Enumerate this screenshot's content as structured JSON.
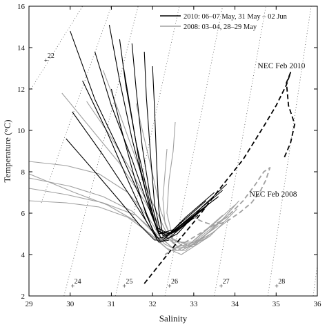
{
  "chart_data": {
    "type": "line",
    "title": "",
    "xlabel": "Salinity",
    "ylabel": "Temperature (°C)",
    "xlim": [
      29,
      36
    ],
    "ylim": [
      2,
      16
    ],
    "xticks": [
      29,
      30,
      31,
      32,
      33,
      34,
      35,
      36
    ],
    "yticks": [
      2,
      4,
      6,
      8,
      10,
      12,
      14,
      16
    ],
    "grid": false,
    "legend_position": "top-right",
    "colors": {
      "series_2010": "#000000",
      "series_2008": "#a0a0a0",
      "isopycnal": "#555555"
    },
    "legend": [
      {
        "label": "2010: 06–07 May, 31 May – 02 Jun",
        "color": "#000000"
      },
      {
        "label": "2008: 03–04, 28–29 May",
        "color": "#a0a0a0"
      }
    ],
    "isopycnal_labels": [
      {
        "text": "22",
        "salinity": 29.45,
        "temperature": 13.4
      },
      {
        "text": "24",
        "salinity": 30.1,
        "temperature": 2.5
      },
      {
        "text": "25",
        "salinity": 31.35,
        "temperature": 2.5
      },
      {
        "text": "26",
        "salinity": 32.45,
        "temperature": 2.5
      },
      {
        "text": "27",
        "salinity": 33.7,
        "temperature": 2.5
      },
      {
        "text": "28",
        "salinity": 35.05,
        "temperature": 2.5
      }
    ],
    "isopycnals": [
      {
        "sigma": 22,
        "x": [
          29.05,
          30.3
        ],
        "y": [
          12.0,
          16.0
        ]
      },
      {
        "sigma": 23,
        "x": [
          29.3,
          31.0
        ],
        "y": [
          6.5,
          16.0
        ]
      },
      {
        "sigma": 24,
        "x": [
          29.85,
          31.65
        ],
        "y": [
          2.0,
          16.0
        ]
      },
      {
        "sigma": 25,
        "x": [
          31.1,
          32.65
        ],
        "y": [
          2.0,
          16.0
        ]
      },
      {
        "sigma": 26,
        "x": [
          32.3,
          33.7
        ],
        "y": [
          2.0,
          16.0
        ]
      },
      {
        "sigma": 27,
        "x": [
          33.5,
          34.75
        ],
        "y": [
          2.0,
          16.0
        ]
      },
      {
        "sigma": 28,
        "x": [
          34.8,
          35.85
        ],
        "y": [
          2.0,
          16.0
        ]
      },
      {
        "sigma": 29,
        "x": [
          35.9,
          36.0
        ],
        "y": [
          2.0,
          3.5
        ]
      }
    ],
    "annotations": [
      {
        "text": "NEC Feb 2010",
        "salinity": 34.55,
        "temperature": 13.0
      },
      {
        "text": "NEC Feb 2008",
        "salinity": 34.35,
        "temperature": 6.8
      }
    ],
    "series": [
      {
        "name": "NEC Feb 2010",
        "style": "dashed",
        "color": "#000000",
        "x": [
          31.8,
          32.2,
          32.6,
          33.1,
          33.6,
          34.2,
          34.7,
          35.0,
          35.25,
          35.35,
          35.25,
          35.3,
          35.45,
          35.35,
          35.2
        ],
        "y": [
          2.6,
          3.6,
          4.6,
          5.8,
          7.1,
          8.6,
          10.2,
          11.2,
          12.2,
          12.8,
          12.3,
          11.2,
          10.3,
          9.4,
          8.7
        ]
      },
      {
        "name": "NEC Feb 2008",
        "style": "dashed",
        "color": "#a0a0a0",
        "x": [
          32.3,
          32.8,
          33.3,
          33.8,
          34.2,
          34.5,
          34.7,
          34.85,
          34.75,
          34.6,
          34.4,
          34.1,
          33.8,
          33.5,
          33.2,
          33.0
        ],
        "y": [
          4.0,
          4.6,
          5.2,
          5.8,
          6.6,
          7.4,
          8.0,
          8.2,
          7.6,
          7.0,
          6.5,
          6.0,
          5.6,
          5.4,
          5.6,
          5.8
        ]
      },
      {
        "name": "2010: 06–07 May, 31 May – 02 Jun",
        "color": "#000000",
        "profiles": [
          {
            "x": [
              30.0,
              30.6,
              31.2,
              31.7,
              32.0,
              32.2,
              32.6,
              33.2,
              33.8
            ],
            "y": [
              14.8,
              11.5,
              9.0,
              6.8,
              5.2,
              4.6,
              5.0,
              6.3,
              7.4
            ]
          },
          {
            "x": [
              30.05,
              30.8,
              31.4,
              31.85,
              32.1,
              32.3,
              32.8,
              33.5
            ],
            "y": [
              10.9,
              8.8,
              7.0,
              5.6,
              4.8,
              4.8,
              5.8,
              7.0
            ]
          },
          {
            "x": [
              29.9,
              30.6,
              31.2,
              31.7,
              32.05,
              32.25,
              32.9,
              33.7
            ],
            "y": [
              9.6,
              8.0,
              6.6,
              5.4,
              4.7,
              4.7,
              5.8,
              7.1
            ]
          },
          {
            "x": [
              30.6,
              31.0,
              31.5,
              31.9,
              32.15,
              32.5,
              33.3
            ],
            "y": [
              13.8,
              11.2,
              8.6,
              6.3,
              5.0,
              5.2,
              6.6
            ]
          },
          {
            "x": [
              30.95,
              31.2,
              31.5,
              31.85,
              32.1,
              32.4,
              33.0,
              33.6
            ],
            "y": [
              15.1,
              12.4,
              9.6,
              6.9,
              5.3,
              5.0,
              5.9,
              6.8
            ]
          },
          {
            "x": [
              31.2,
              31.35,
              31.6,
              31.9,
              32.1,
              32.35,
              32.9
            ],
            "y": [
              14.4,
              12.2,
              9.4,
              6.8,
              5.2,
              4.9,
              5.6
            ]
          },
          {
            "x": [
              31.5,
              31.6,
              31.75,
              31.95,
              32.15,
              32.45,
              33.1
            ],
            "y": [
              14.2,
              12.0,
              9.2,
              6.7,
              5.1,
              5.0,
              5.9
            ]
          },
          {
            "x": [
              31.8,
              31.85,
              31.95,
              32.05,
              32.2,
              32.5,
              33.2
            ],
            "y": [
              13.8,
              11.6,
              8.8,
              6.4,
              5.0,
              5.1,
              6.2
            ]
          },
          {
            "x": [
              32.0,
              32.05,
              32.1,
              32.15,
              32.25,
              32.6,
              33.4
            ],
            "y": [
              13.1,
              11.0,
              8.4,
              6.2,
              4.9,
              5.2,
              6.5
            ]
          },
          {
            "x": [
              31.3,
              31.5,
              31.7,
              31.95,
              32.2,
              32.55,
              33.3
            ],
            "y": [
              13.0,
              10.6,
              8.2,
              6.1,
              4.8,
              5.1,
              6.3
            ]
          },
          {
            "x": [
              30.3,
              30.9,
              31.4,
              31.85,
              32.15,
              32.4
            ],
            "y": [
              12.4,
              9.9,
              7.6,
              5.6,
              4.6,
              4.7
            ]
          },
          {
            "x": [
              31.0,
              31.25,
              31.55,
              31.85,
              32.1,
              32.4,
              33.0
            ],
            "y": [
              12.0,
              10.0,
              7.8,
              5.9,
              4.8,
              4.8,
              5.8
            ]
          }
        ]
      },
      {
        "name": "2008: 03–04, 28–29 May",
        "color": "#a0a0a0",
        "profiles": [
          {
            "x": [
              29.0,
              29.9,
              30.7,
              31.4,
              31.9,
              32.2,
              32.5,
              33.0,
              33.7,
              34.1
            ],
            "y": [
              8.5,
              8.3,
              7.9,
              7.0,
              5.8,
              4.8,
              4.3,
              4.6,
              5.7,
              6.6
            ]
          },
          {
            "x": [
              29.0,
              30.0,
              30.8,
              31.5,
              32.0,
              32.3,
              32.6,
              33.2,
              33.9
            ],
            "y": [
              7.7,
              7.3,
              6.8,
              6.1,
              5.1,
              4.5,
              4.2,
              4.8,
              6.0
            ]
          },
          {
            "x": [
              29.0,
              29.9,
              30.7,
              31.4,
              31.95,
              32.35,
              32.7,
              33.4,
              34.05
            ],
            "y": [
              6.6,
              6.5,
              6.3,
              5.8,
              5.0,
              4.3,
              4.0,
              4.9,
              6.2
            ]
          },
          {
            "x": [
              29.0,
              30.1,
              30.9,
              31.6,
              32.1,
              32.4,
              32.8,
              33.5
            ],
            "y": [
              7.9,
              7.0,
              6.4,
              5.6,
              4.7,
              4.2,
              4.2,
              5.3
            ]
          },
          {
            "x": [
              29.8,
              30.5,
              31.2,
              31.8,
              32.2,
              32.6,
              33.1,
              33.8
            ],
            "y": [
              11.8,
              10.1,
              8.4,
              6.6,
              5.2,
              4.4,
              4.5,
              5.6
            ]
          },
          {
            "x": [
              30.4,
              30.95,
              31.5,
              31.95,
              32.3,
              32.7,
              33.3
            ],
            "y": [
              11.4,
              9.8,
              8.0,
              6.2,
              4.9,
              4.2,
              4.8
            ]
          },
          {
            "x": [
              30.8,
              31.2,
              31.6,
              32.0,
              32.35,
              32.8,
              33.5
            ],
            "y": [
              12.9,
              10.8,
              8.6,
              6.5,
              5.0,
              4.3,
              5.1
            ]
          },
          {
            "x": [
              31.6,
              31.8,
              32.0,
              32.2,
              32.45,
              32.9,
              33.6
            ],
            "y": [
              11.3,
              9.6,
              7.9,
              6.1,
              4.8,
              4.4,
              5.4
            ]
          },
          {
            "x": [
              32.55,
              32.5,
              32.4,
              32.35,
              32.5,
              32.9,
              33.5,
              34.0
            ],
            "y": [
              10.4,
              9.0,
              7.6,
              6.0,
              4.7,
              4.5,
              5.5,
              6.4
            ]
          },
          {
            "x": [
              32.35,
              32.3,
              32.25,
              32.3,
              32.5,
              32.95,
              33.7
            ],
            "y": [
              9.1,
              7.9,
              6.7,
              5.5,
              4.6,
              4.6,
              5.9
            ]
          },
          {
            "x": [
              29.0,
              29.9,
              30.8,
              31.6,
              32.1,
              32.5,
              33.0,
              33.8
            ],
            "y": [
              7.2,
              6.9,
              6.5,
              5.9,
              5.0,
              4.3,
              4.4,
              5.9
            ]
          }
        ]
      }
    ]
  }
}
